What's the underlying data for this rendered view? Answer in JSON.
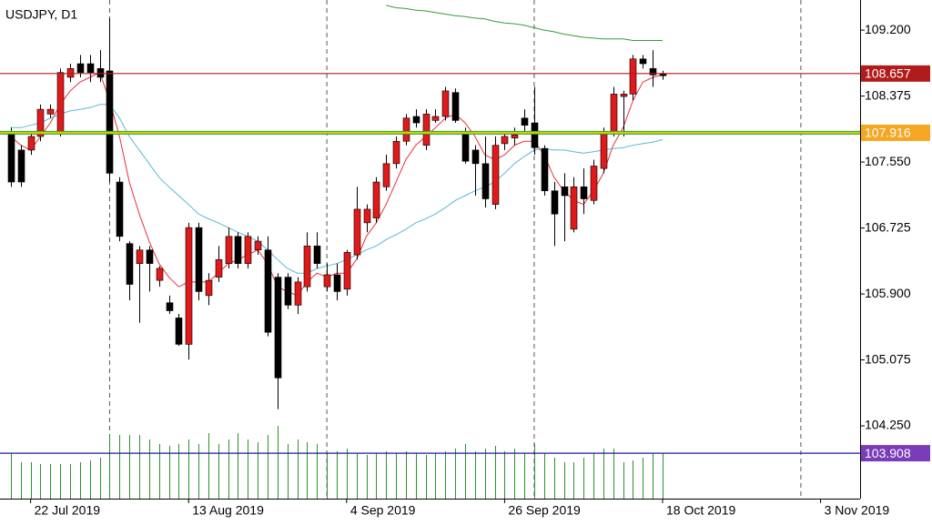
{
  "chart_data": {
    "type": "candlestick",
    "title": "USDJPY, D1",
    "categories": [
      null,
      null,
      null,
      null,
      null,
      null,
      null,
      null,
      null,
      null,
      null,
      null,
      null,
      null,
      null,
      null,
      null,
      null,
      null,
      null,
      null,
      null,
      null,
      null,
      null,
      null,
      null,
      null,
      null,
      null,
      null,
      null,
      null,
      null,
      null,
      null,
      null,
      null,
      null,
      null,
      null,
      null,
      null,
      null,
      null,
      null,
      null,
      null,
      null,
      null,
      null,
      null,
      null,
      null,
      null,
      null,
      null,
      null,
      null,
      null,
      null,
      null,
      null,
      null,
      null,
      null,
      null
    ],
    "open": [
      107.93,
      107.7,
      107.7,
      107.87,
      108.15,
      107.93,
      108.61,
      108.78,
      108.78,
      108.72,
      108.69,
      107.3,
      106.53,
      106.28,
      106.45,
      106.07,
      105.79,
      105.6,
      105.27,
      106.73,
      105.88,
      106.11,
      106.28,
      106.62,
      106.28,
      106.45,
      106.45,
      106.11,
      106.11,
      105.76,
      105.99,
      106.5,
      105.99,
      106.14,
      105.96,
      106.39,
      106.79,
      106.85,
      107.24,
      107.53,
      107.81,
      108.12,
      107.76,
      108.07,
      108.12,
      108.42,
      107.9,
      107.7,
      107.53,
      107.02,
      107.78,
      107.85,
      108.1,
      108.04,
      107.72,
      107.19,
      107.24,
      106.71,
      107.24,
      107.07,
      107.47,
      107.93,
      108.37,
      108.4,
      108.84,
      108.72,
      108.65
    ],
    "high": [
      107.98,
      107.76,
      107.93,
      108.27,
      108.27,
      108.72,
      108.78,
      108.89,
      108.89,
      108.95,
      109.35,
      107.36,
      106.56,
      106.5,
      106.5,
      106.25,
      105.88,
      105.65,
      106.79,
      106.79,
      106.16,
      106.5,
      106.73,
      106.67,
      106.67,
      106.62,
      106.62,
      106.16,
      106.16,
      106.11,
      106.67,
      106.67,
      106.28,
      106.28,
      106.45,
      107.24,
      107.02,
      107.36,
      107.64,
      107.87,
      108.15,
      108.21,
      108.21,
      108.21,
      108.49,
      108.47,
      107.98,
      107.76,
      107.87,
      107.87,
      107.93,
      107.98,
      108.21,
      108.49,
      107.76,
      107.3,
      107.41,
      107.36,
      107.47,
      107.58,
      107.98,
      108.49,
      108.44,
      108.89,
      108.89,
      108.95,
      108.69
    ],
    "low": [
      107.24,
      107.24,
      107.64,
      107.81,
      108.1,
      107.87,
      108.55,
      108.61,
      108.55,
      108.55,
      107.3,
      106.56,
      105.82,
      105.54,
      105.93,
      105.99,
      105.65,
      105.25,
      105.08,
      105.82,
      105.76,
      106.05,
      106.22,
      106.22,
      106.22,
      106.39,
      105.37,
      104.46,
      105.71,
      105.65,
      105.93,
      106.22,
      105.93,
      105.82,
      105.88,
      106.33,
      106.67,
      106.79,
      107.19,
      107.47,
      107.76,
      107.98,
      107.7,
      108.04,
      108.07,
      108.04,
      107.53,
      107.13,
      106.98,
      106.96,
      107.7,
      107.76,
      107.93,
      107.64,
      107.13,
      106.5,
      106.56,
      106.67,
      106.9,
      107.02,
      107.41,
      107.87,
      107.87,
      108.32,
      108.72,
      108.49,
      108.58
    ],
    "close": [
      107.3,
      107.3,
      107.87,
      108.21,
      108.21,
      108.67,
      108.72,
      108.67,
      108.67,
      108.61,
      107.41,
      106.62,
      106.02,
      106.45,
      106.28,
      106.22,
      105.69,
      105.27,
      106.73,
      105.93,
      106.07,
      106.33,
      106.62,
      106.28,
      106.62,
      106.56,
      105.42,
      104.85,
      105.76,
      106.05,
      106.5,
      106.28,
      106.14,
      105.93,
      106.42,
      106.96,
      106.96,
      107.3,
      107.53,
      107.81,
      108.1,
      108.04,
      108.15,
      108.12,
      108.44,
      108.07,
      107.56,
      107.53,
      107.09,
      107.76,
      107.87,
      107.89,
      108.01,
      107.73,
      107.19,
      106.9,
      107.13,
      107.24,
      107.09,
      107.5,
      107.93,
      108.4,
      108.4,
      108.84,
      108.78,
      108.64,
      108.63
    ],
    "up_color": "#e0191b",
    "down_color": "#000000",
    "overlays": [
      {
        "color": "#e8303a",
        "values": [
          107.87,
          107.76,
          107.7,
          107.87,
          108.04,
          108.27,
          108.44,
          108.55,
          108.61,
          108.67,
          108.32,
          107.87,
          107.3,
          106.9,
          106.56,
          106.28,
          106.11,
          105.99,
          106.05,
          106.05,
          106.05,
          106.16,
          106.28,
          106.33,
          106.39,
          106.45,
          106.28,
          105.99,
          105.93,
          105.88,
          106.05,
          106.16,
          106.11,
          106.16,
          106.16,
          106.33,
          106.62,
          106.79,
          107.02,
          107.3,
          107.58,
          107.76,
          107.87,
          107.98,
          108.1,
          108.15,
          108.04,
          107.87,
          107.64,
          107.58,
          107.64,
          107.76,
          107.81,
          107.81,
          107.64,
          107.36,
          107.19,
          107.07,
          107.02,
          107.19,
          107.41,
          107.76,
          107.98,
          108.32,
          108.55,
          108.61,
          108.64
        ]
      },
      {
        "color": "#5bb8d6",
        "values": [
          107.98,
          107.98,
          108.01,
          108.04,
          108.1,
          108.15,
          108.19,
          108.21,
          108.23,
          108.27,
          108.27,
          108.1,
          107.87,
          107.7,
          107.53,
          107.36,
          107.24,
          107.13,
          107.02,
          106.9,
          106.84,
          106.79,
          106.73,
          106.67,
          106.62,
          106.56,
          106.45,
          106.33,
          106.22,
          106.16,
          106.16,
          106.22,
          106.25,
          106.28,
          106.33,
          106.39,
          106.45,
          106.5,
          106.58,
          106.64,
          106.71,
          106.79,
          106.84,
          106.9,
          106.98,
          107.07,
          107.13,
          107.19,
          107.24,
          107.3,
          107.41,
          107.53,
          107.62,
          107.7,
          107.72,
          107.7,
          107.7,
          107.68,
          107.66,
          107.68,
          107.7,
          107.72,
          107.73,
          107.76,
          107.78,
          107.8,
          107.83
        ]
      },
      {
        "color": "#3a9a3a",
        "values": [
          null,
          null,
          null,
          null,
          null,
          null,
          null,
          null,
          null,
          null,
          null,
          null,
          null,
          null,
          null,
          null,
          null,
          null,
          null,
          null,
          null,
          null,
          null,
          null,
          null,
          null,
          null,
          null,
          null,
          null,
          null,
          null,
          null,
          null,
          null,
          null,
          null,
          null,
          109.51,
          109.48,
          109.47,
          109.45,
          109.44,
          109.42,
          109.4,
          109.38,
          109.37,
          109.35,
          109.34,
          109.31,
          109.29,
          109.28,
          109.26,
          109.23,
          109.2,
          109.18,
          109.15,
          109.13,
          109.11,
          109.1,
          109.09,
          109.09,
          109.09,
          109.07,
          109.07,
          109.07,
          109.07
        ]
      }
    ],
    "volume": {
      "color": "#2f8f2f",
      "values": [
        50,
        40,
        40,
        38,
        38,
        38,
        38,
        40,
        42,
        45,
        70,
        70,
        70,
        70,
        65,
        60,
        58,
        60,
        65,
        60,
        72,
        60,
        65,
        72,
        65,
        62,
        70,
        80,
        60,
        65,
        62,
        60,
        50,
        52,
        55,
        50,
        48,
        50,
        52,
        50,
        52,
        50,
        48,
        50,
        52,
        55,
        60,
        52,
        55,
        58,
        52,
        55,
        50,
        60,
        50,
        45,
        40,
        40,
        45,
        50,
        55,
        55,
        40,
        42,
        45,
        50,
        50
      ],
      "ylim": [
        0,
        543
      ]
    },
    "levels": [
      {
        "price": 108.657,
        "color": "#b01c1c",
        "label_color": "#b01c1c"
      },
      {
        "price": 107.916,
        "color": "#c9d400",
        "label_color": "#f5a623"
      },
      {
        "price": 103.908,
        "color": "#1a1aa0",
        "label_color": "#7a3cb8"
      }
    ],
    "separators": [
      10,
      32,
      53,
      80
    ],
    "xlim": [
      -1.1,
      86
    ],
    "xticks": [
      {
        "value": 2,
        "label": "22 Jul 2019"
      },
      {
        "value": 18,
        "label": "13 Aug 2019"
      },
      {
        "value": 34,
        "label": "4 Sep 2019"
      },
      {
        "value": 50,
        "label": "26 Sep 2019"
      },
      {
        "value": 66,
        "label": "18 Oct 2019"
      },
      {
        "value": 82,
        "label": "3 Nov 2019"
      }
    ],
    "ylim": [
      103.34,
      109.52
    ],
    "yticks": [
      {
        "value": 109.2,
        "label": "109.200"
      },
      {
        "value": 108.375,
        "label": "108.375"
      },
      {
        "value": 107.55,
        "label": "107.550"
      },
      {
        "value": 106.725,
        "label": "106.725"
      },
      {
        "value": 105.9,
        "label": "105.900"
      },
      {
        "value": 105.075,
        "label": "105.075"
      },
      {
        "value": 104.25,
        "label": "104.250"
      }
    ]
  }
}
